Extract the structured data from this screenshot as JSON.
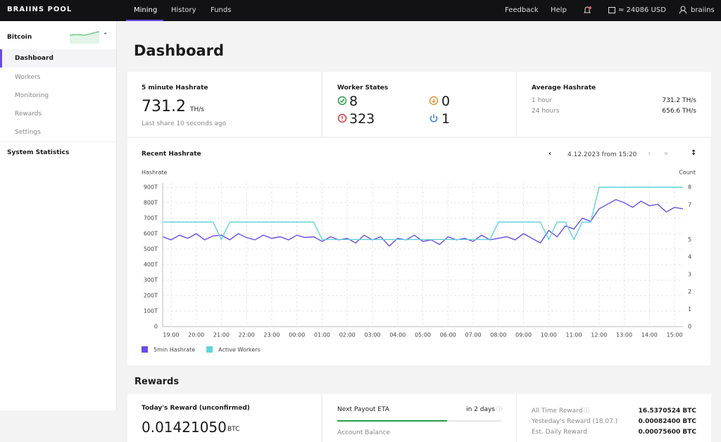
{
  "topbar": {
    "logo": "BRAIINS POOL",
    "nav": [
      "Mining",
      "History",
      "Funds"
    ],
    "links": [
      "Feedback",
      "Help"
    ],
    "balance": "≈ 24086 USD",
    "user": "braiins"
  },
  "sidebar": {
    "coin": "Bitcoin",
    "items": [
      "Dashboard",
      "Workers",
      "Monitoring",
      "Rewards",
      "Settings"
    ],
    "system": "System Statistics"
  },
  "page_title": "Dashboard",
  "hashrate_card": {
    "label": "5 minute Hashrate",
    "value": "731.2",
    "unit": "TH/s",
    "note": "Last share 10 seconds ago"
  },
  "worker_states": {
    "label": "Worker States",
    "ok": 8,
    "low": 0,
    "dead": 323,
    "off": 1
  },
  "average_hashrate": {
    "label": "Average Hashrate",
    "rows": [
      [
        "1 hour",
        "731.2 TH/s"
      ],
      [
        "24 hours",
        "656.6 TH/s"
      ]
    ]
  },
  "chart_card": {
    "title": "Recent Hashrate",
    "date": "4.12.2023 from 15:20"
  },
  "chart_data": {
    "type": "line",
    "ylabel": "Hashrate",
    "y2label": "Count",
    "grid": true,
    "legend": "bottom-left",
    "categories": [
      null,
      "19:00",
      null,
      null,
      "20:00",
      null,
      null,
      "21:00",
      null,
      null,
      "22:00",
      null,
      null,
      "23:00",
      null,
      null,
      "00:00",
      null,
      null,
      "01:00",
      null,
      null,
      "02:00",
      null,
      null,
      "03:00",
      null,
      null,
      "04:00",
      null,
      null,
      "05:00",
      null,
      null,
      "06:00",
      null,
      null,
      "07:00",
      null,
      null,
      "08:00",
      null,
      null,
      "09:00",
      null,
      null,
      "10:00",
      null,
      null,
      "11:00",
      null,
      null,
      "12:00",
      null,
      null,
      "13:00",
      null,
      null,
      "14:00",
      null,
      null,
      "15:00",
      null
    ],
    "series": [
      {
        "name": "5min Hashrate",
        "color": "#6b4ce6",
        "values": [
          580,
          560,
          590,
          570,
          600,
          560,
          585,
          590,
          560,
          600,
          575,
          560,
          590,
          570,
          580,
          560,
          590,
          575,
          580,
          550,
          580,
          560,
          570,
          540,
          590,
          560,
          580,
          520,
          570,
          560,
          590,
          550,
          560,
          530,
          580,
          560,
          570,
          550,
          590,
          560,
          570,
          580,
          560,
          600,
          570,
          540,
          620,
          580,
          650,
          630,
          700,
          680,
          760,
          790,
          820,
          800,
          770,
          810,
          780,
          790,
          740,
          770,
          760
        ]
      },
      {
        "name": "Active Workers",
        "color": "#5fd3dc",
        "axis": "y2",
        "values": [
          6,
          6,
          6,
          6,
          6,
          6,
          6,
          5,
          6,
          6,
          6,
          6,
          6,
          6,
          6,
          6,
          6,
          6,
          6,
          5,
          5,
          5,
          5,
          5,
          5,
          5,
          5,
          5,
          5,
          5,
          5,
          5,
          5,
          5,
          5,
          5,
          5,
          5,
          5,
          5,
          6,
          6,
          6,
          6,
          6,
          6,
          5,
          6,
          6,
          5,
          6,
          6,
          8,
          8,
          8,
          8,
          8,
          8,
          8,
          8,
          8,
          8,
          8
        ]
      }
    ],
    "ylim": [
      0,
      900
    ],
    "yticks": [
      0,
      {
        "value": 100,
        "label": "100T"
      },
      {
        "value": 200,
        "label": "200T"
      },
      {
        "value": 300,
        "label": "300T"
      },
      {
        "value": 400,
        "label": "400T"
      },
      {
        "value": 500,
        "label": "500T"
      },
      {
        "value": 600,
        "label": "600T"
      },
      {
        "value": 700,
        "label": "700T"
      },
      {
        "value": 800,
        "label": "800T"
      },
      {
        "value": 900,
        "label": "900T"
      }
    ],
    "y2lim": [
      0,
      8
    ],
    "y2ticks": [
      0,
      1,
      2,
      3,
      4,
      5,
      7,
      8
    ]
  },
  "rewards": {
    "heading": "Rewards",
    "today_label": "Today's Reward (unconfirmed)",
    "today_value": "0.01421050",
    "unit": "BTC",
    "payout_label": "Next Payout ETA",
    "payout_value": "in 2 days",
    "account_balance": "Account Balance",
    "rows": [
      [
        "All Time Reward",
        "16.5370524 BTC"
      ],
      [
        "Yesteday's Reward (18.07.)",
        "0.00082400 BTC"
      ],
      [
        "Est. Daily Reward",
        "0.00075600 BTC"
      ]
    ]
  }
}
